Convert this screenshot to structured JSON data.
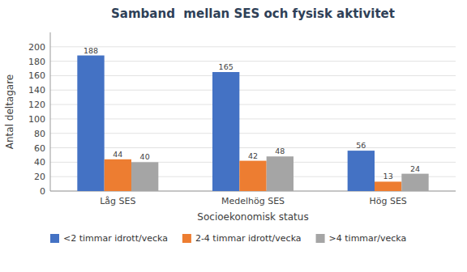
{
  "chart_data": {
    "type": "bar",
    "title": "Samband  mellan SES och fysisk aktivitet",
    "xlabel": "Socioekonomisk status",
    "ylabel": "Antal deltagare",
    "categories": [
      "Låg SES",
      "Medelhög SES",
      "Hög SES"
    ],
    "series": [
      {
        "name": "<2 timmar idrott/vecka",
        "values": [
          188,
          165,
          56
        ],
        "color": "#4472C4"
      },
      {
        "name": "2-4 timmar idrott/vecka",
        "values": [
          44,
          42,
          13
        ],
        "color": "#ED7D31"
      },
      {
        "name": ">4 timmar/vecka",
        "values": [
          40,
          48,
          24
        ],
        "color": "#A5A5A5"
      }
    ],
    "ylim": [
      0,
      220
    ],
    "yticks": [
      0,
      20,
      40,
      60,
      80,
      100,
      120,
      140,
      160,
      180,
      200
    ],
    "grid": true,
    "data_labels": true,
    "legend": "bottom"
  }
}
